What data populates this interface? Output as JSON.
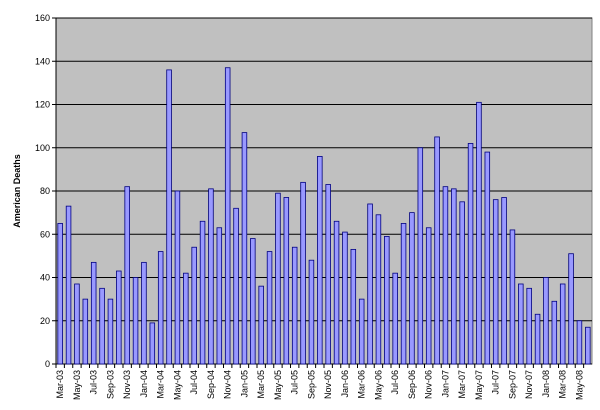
{
  "chart_data": {
    "type": "bar",
    "y_label": "American Deaths",
    "categories": [
      "Mar-03",
      null,
      "May-03",
      null,
      "Jul-03",
      null,
      "Sep-03",
      null,
      "Nov-03",
      null,
      "Jan-04",
      null,
      "Mar-04",
      null,
      "May-04",
      null,
      "Jul-04",
      null,
      "Sep-04",
      null,
      "Nov-04",
      null,
      "Jan-05",
      null,
      "Mar-05",
      null,
      "May-05",
      null,
      "Jul-05",
      null,
      "Sep-05",
      null,
      "Nov-05",
      null,
      "Jan-06",
      null,
      "Mar-06",
      null,
      "May-06",
      null,
      "Jul-06",
      null,
      "Sep-06",
      null,
      "Nov-06",
      null,
      "Jan-07",
      null,
      "Mar-07",
      null,
      "May-07",
      null,
      "Jul-07",
      null,
      "Sep-07",
      null,
      "Nov-07",
      null,
      "Jan-08",
      null,
      "Mar-08",
      null,
      "May-08",
      null
    ],
    "values": [
      65,
      73,
      37,
      30,
      47,
      35,
      30,
      43,
      82,
      40,
      47,
      19,
      52,
      136,
      80,
      42,
      54,
      66,
      81,
      63,
      137,
      72,
      107,
      58,
      36,
      52,
      79,
      77,
      54,
      84,
      48,
      96,
      83,
      66,
      61,
      53,
      30,
      74,
      69,
      59,
      42,
      65,
      70,
      100,
      63,
      105,
      82,
      81,
      75,
      102,
      121,
      98,
      76,
      77,
      62,
      37,
      35,
      23,
      40,
      29,
      37,
      51,
      20,
      17
    ],
    "color": "#9999ff",
    "ylim": [
      0,
      160
    ],
    "yticks": [
      0,
      20,
      40,
      60,
      80,
      100,
      120,
      140,
      160
    ],
    "grid": true
  }
}
